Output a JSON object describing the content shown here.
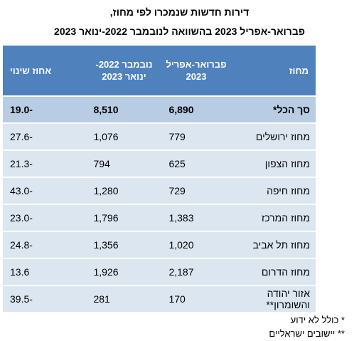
{
  "title_line1": "דירות חדשות שנמכרו לפי מחוז,",
  "title_line2": "פברואר-אפריל 2023 בהשוואה לנובמבר 2022-ינואר 2023",
  "headers": [
    "מחוז",
    "פברואר-אפריל 2023",
    "נובמבר 2022-ינואר 2023",
    "אחוז שינוי"
  ],
  "rows": [
    {
      "district": "סך הכל*",
      "feb_apr_2023": "6,890",
      "nov_jan": "8,510",
      "change": "-19.0"
    },
    {
      "district": "מחוז ירושלים",
      "feb_apr_2023": "779",
      "nov_jan": "1,076",
      "change": "-27.6"
    },
    {
      "district": "מחוז הצפון",
      "feb_apr_2023": "625",
      "nov_jan": "794",
      "change": "-21.3"
    },
    {
      "district": "מחוז חיפה",
      "feb_apr_2023": "729",
      "nov_jan": "1,280",
      "change": "-43.0"
    },
    {
      "district": "מחוז המרכז",
      "feb_apr_2023": "1,383",
      "nov_jan": "1,796",
      "change": "-23.0"
    },
    {
      "district": "מחוז תל אביב",
      "feb_apr_2023": "1,020",
      "nov_jan": "1,356",
      "change": "-24.8"
    },
    {
      "district": "מחוז הדרום",
      "feb_apr_2023": "2,187",
      "nov_jan": "1,926",
      "change": "13.6"
    },
    {
      "district": "אזור יהודה והשומרון**",
      "feb_apr_2023": "170",
      "nov_jan": "281",
      "change": "-39.5"
    }
  ],
  "footnotes": [
    "* כולל לא ידוע",
    "** יישובים ישראליים"
  ]
}
